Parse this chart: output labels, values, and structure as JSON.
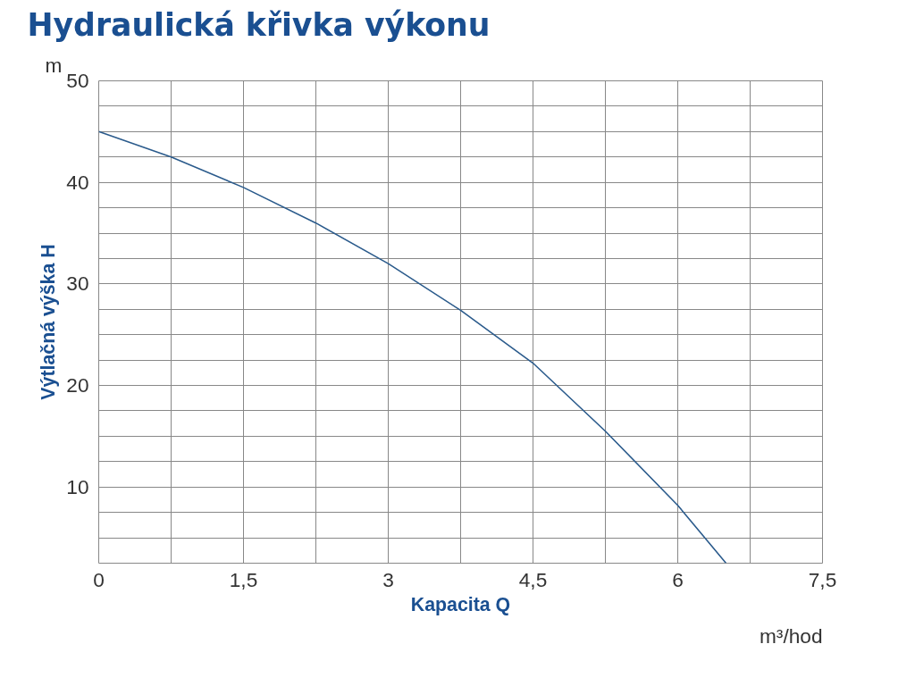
{
  "chart_data": {
    "type": "line",
    "title": "Hydraulická křivka výkonu",
    "xlabel": "Kapacita Q",
    "ylabel": "Výtlačná výška H",
    "annotations": [
      "m",
      "m³/hod"
    ],
    "x": [
      0,
      0.75,
      1.5,
      2.25,
      3,
      3.75,
      4.5,
      5.25,
      6,
      6.5
    ],
    "series": [
      {
        "color": "#2b5b8c",
        "values": [
          45,
          42.5,
          39.5,
          36,
          32,
          27.4,
          22.2,
          15.5,
          8.2,
          2.5
        ]
      }
    ],
    "xlim": [
      0,
      7.5
    ],
    "ylim": [
      2.5,
      50
    ],
    "xticks": [
      0,
      {
        "value": 0.75,
        "label": null
      },
      {
        "value": 1.5,
        "label": "1,5"
      },
      {
        "value": 2.25,
        "label": null
      },
      3,
      {
        "value": 3.75,
        "label": null
      },
      {
        "value": 4.5,
        "label": "4,5"
      },
      {
        "value": 5.25,
        "label": null
      },
      6,
      {
        "value": 6.75,
        "label": null
      },
      {
        "value": 7.5,
        "label": "7,5"
      }
    ],
    "yticks": [
      {
        "value": 2.5,
        "label": null
      },
      {
        "value": 5,
        "label": null
      },
      {
        "value": 7.5,
        "label": null
      },
      10,
      {
        "value": 12.5,
        "label": null
      },
      {
        "value": 15,
        "label": null
      },
      {
        "value": 17.5,
        "label": null
      },
      20,
      {
        "value": 22.5,
        "label": null
      },
      {
        "value": 25,
        "label": null
      },
      {
        "value": 27.5,
        "label": null
      },
      30,
      {
        "value": 32.5,
        "label": null
      },
      {
        "value": 35,
        "label": null
      },
      {
        "value": 37.5,
        "label": null
      },
      40,
      {
        "value": 42.5,
        "label": null
      },
      {
        "value": 45,
        "label": null
      },
      {
        "value": 47.5,
        "label": null
      },
      50
    ],
    "grid": true,
    "marker": "none",
    "line_style": "solid"
  }
}
